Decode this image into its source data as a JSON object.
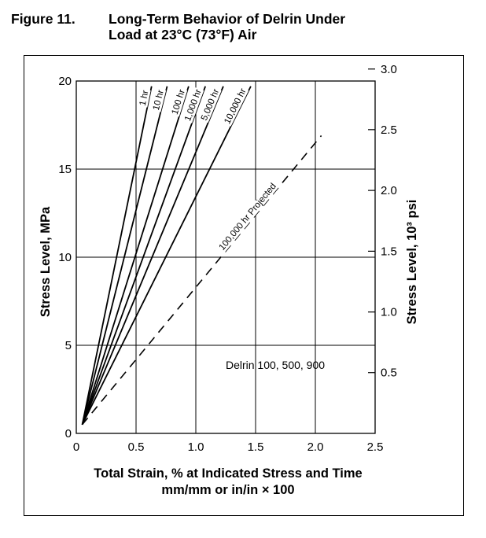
{
  "figure": {
    "number": "Figure 11.",
    "title_line1": "Long-Term Behavior of Delrin Under",
    "title_line2": "Load at 23°C (73°F) Air"
  },
  "chart_data": {
    "type": "line",
    "xlabel_line1": "Total Strain, % at Indicated Stress and Time",
    "xlabel_line2": "mm/mm or in/in × 100",
    "ylabel": "Stress Level, MPa",
    "y2label": "Stress Level, 10³ psi",
    "xlim": [
      0,
      2.5
    ],
    "ylim": [
      0,
      20
    ],
    "x_ticks": [
      "0",
      "0.5",
      "1.0",
      "1.5",
      "2.0",
      "2.5"
    ],
    "y_ticks": [
      "0",
      "5",
      "10",
      "15",
      "20"
    ],
    "y2_ticks": [
      "0.5",
      "1.0",
      "1.5",
      "2.0",
      "2.5",
      "3.0"
    ],
    "y2_tick_values_mpa": [
      3.45,
      6.89,
      10.34,
      13.79,
      17.24,
      20.68
    ],
    "grid": true,
    "annotation": "Delrin 100, 500, 900",
    "origin": [
      0.05,
      0.5
    ],
    "series": [
      {
        "name": "1 hr",
        "x": [
          0.05,
          0.63
        ],
        "y": [
          0.5,
          19.7
        ],
        "dashed": false
      },
      {
        "name": "10 hr",
        "x": [
          0.05,
          0.76
        ],
        "y": [
          0.5,
          19.7
        ],
        "dashed": false
      },
      {
        "name": "100 hr",
        "x": [
          0.05,
          0.94
        ],
        "y": [
          0.5,
          19.7
        ],
        "dashed": false
      },
      {
        "name": "1,000 hr",
        "x": [
          0.05,
          1.08
        ],
        "y": [
          0.5,
          19.7
        ],
        "dashed": false
      },
      {
        "name": "5,000 hr",
        "x": [
          0.05,
          1.23
        ],
        "y": [
          0.5,
          19.7
        ],
        "dashed": false
      },
      {
        "name": "10,000 hr",
        "x": [
          0.05,
          1.46
        ],
        "y": [
          0.5,
          19.7
        ],
        "dashed": false
      },
      {
        "name": "100,000 hr Projected",
        "x": [
          0.05,
          2.05
        ],
        "y": [
          0.5,
          16.9
        ],
        "dashed": true
      }
    ]
  }
}
